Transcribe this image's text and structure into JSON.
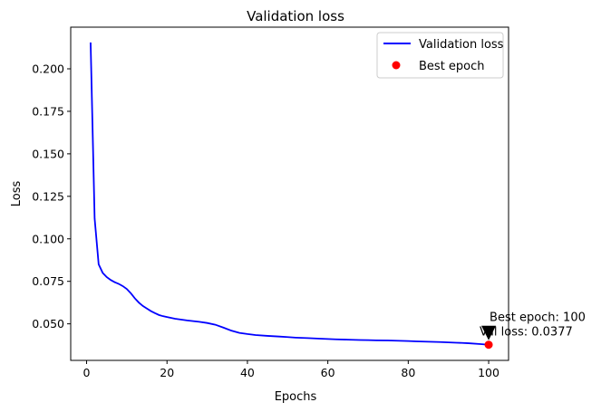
{
  "chart_data": {
    "type": "line",
    "title": "Validation loss",
    "xlabel": "Epochs",
    "ylabel": "Loss",
    "xlim": [
      -3.95,
      104.95
    ],
    "ylim": [
      0.0285,
      0.2245
    ],
    "xticks": [
      0,
      20,
      40,
      60,
      80,
      100
    ],
    "yticks": [
      0.05,
      0.075,
      0.1,
      0.125,
      0.15,
      0.175,
      0.2
    ],
    "ytick_labels": [
      "0.050",
      "0.075",
      "0.100",
      "0.125",
      "0.150",
      "0.175",
      "0.200"
    ],
    "xtick_labels": [
      "0",
      "20",
      "40",
      "60",
      "80",
      "100"
    ],
    "grid": false,
    "legend_position": "top-right",
    "series": [
      {
        "name": "Validation loss",
        "color": "#0000ff",
        "x": [
          1,
          2,
          3,
          4,
          5,
          6,
          7,
          8,
          9,
          10,
          11,
          12,
          13,
          14,
          15,
          16,
          17,
          18,
          19,
          20,
          22,
          25,
          28,
          30,
          32,
          34,
          36,
          38,
          40,
          42,
          45,
          48,
          50,
          52,
          55,
          58,
          60,
          62,
          65,
          68,
          70,
          72,
          75,
          78,
          80,
          82,
          85,
          88,
          90,
          92,
          95,
          98,
          100
        ],
        "y": [
          0.2155,
          0.112,
          0.085,
          0.08,
          0.0775,
          0.0758,
          0.0745,
          0.0735,
          0.0722,
          0.0705,
          0.068,
          0.065,
          0.0625,
          0.0605,
          0.059,
          0.0575,
          0.0563,
          0.0552,
          0.0545,
          0.054,
          0.053,
          0.052,
          0.0512,
          0.0505,
          0.0495,
          0.0478,
          0.046,
          0.0447,
          0.044,
          0.0434,
          0.0429,
          0.0425,
          0.0422,
          0.0419,
          0.0416,
          0.0413,
          0.0411,
          0.0409,
          0.0407,
          0.0405,
          0.0404,
          0.0403,
          0.0402,
          0.04,
          0.0399,
          0.0397,
          0.0395,
          0.0393,
          0.0391,
          0.0389,
          0.0386,
          0.0381,
          0.0377
        ]
      }
    ],
    "best_point": {
      "name": "Best epoch",
      "color": "#ff0000",
      "x": 100,
      "y": 0.0377
    },
    "annotation": {
      "line1": "Best epoch: 100",
      "line2": "Val loss: 0.0377"
    }
  }
}
